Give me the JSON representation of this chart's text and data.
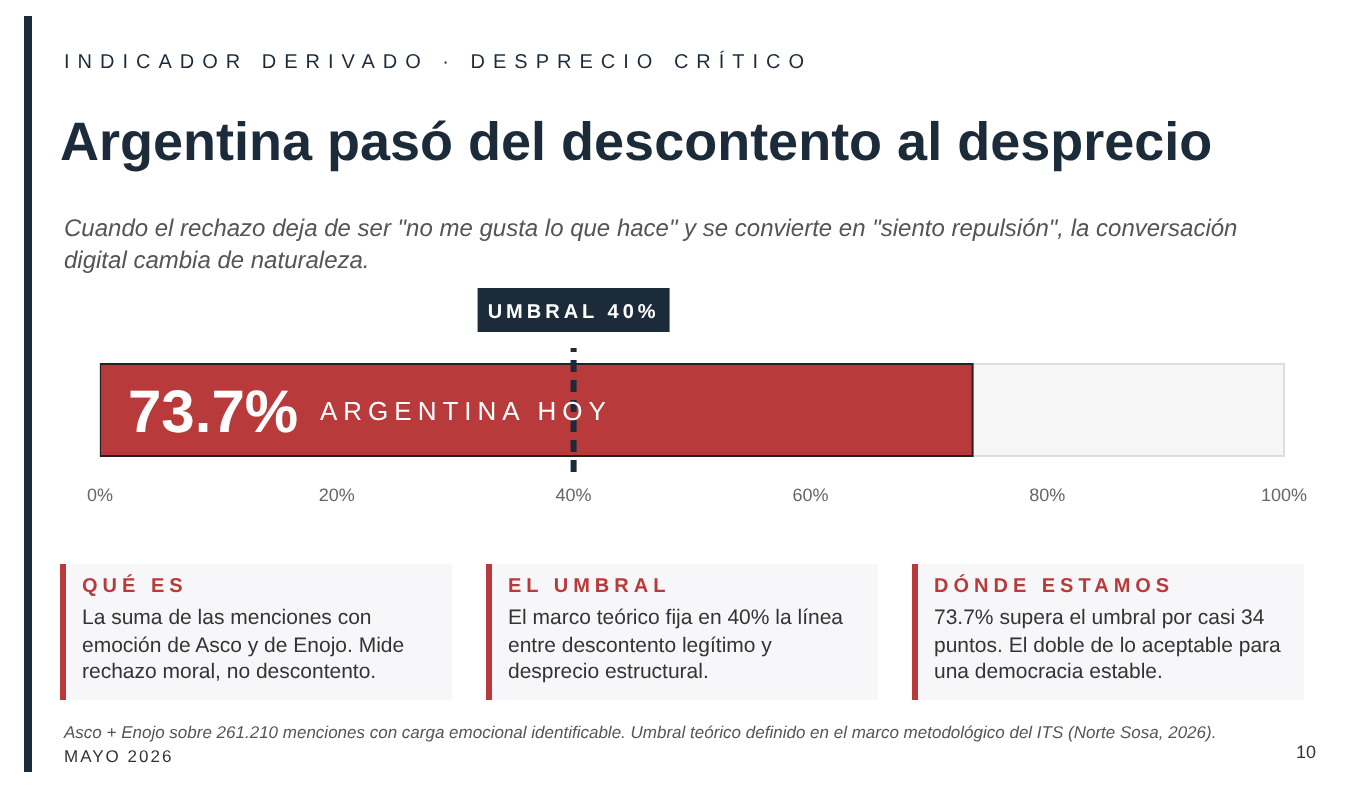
{
  "chart_data": {
    "type": "bar",
    "orientation": "horizontal",
    "title": "Argentina pasó del descontento al desprecio",
    "subtitle": "Cuando el rechazo deja de ser \"no me gusta lo que hace\" y se convierte en \"siento repulsión\", la conversación digital cambia de naturaleza.",
    "categories": [
      "ARGENTINA HOY"
    ],
    "values": [
      73.7
    ],
    "value_labels": [
      "73.7%"
    ],
    "color": "#b83a3a",
    "xlim": [
      0,
      100
    ],
    "xticks": [
      {
        "value": 0,
        "label": "0%"
      },
      {
        "value": 20,
        "label": "20%"
      },
      {
        "value": 40,
        "label": "40%"
      },
      {
        "value": 60,
        "label": "60%"
      },
      {
        "value": 80,
        "label": "80%"
      },
      {
        "value": 100,
        "label": "100%"
      }
    ],
    "ref_lines": [
      {
        "axis": "x",
        "value": 40,
        "label": "UMBRAL 40%",
        "color": "#1c2b3a",
        "line_style": "dashed"
      }
    ],
    "annotations": [
      "INDICADOR DERIVADO · DESPRECIO CRÍTICO",
      "QUÉ ES",
      "La suma de las menciones con emoción de Asco y de Enojo. Mide rechazo moral, no descontento.",
      "EL UMBRAL",
      "El marco teórico fija en 40% la línea entre descontento legítimo y desprecio estructural.",
      "DÓNDE ESTAMOS",
      "73.7% supera el umbral por casi 34 puntos. El doble de lo aceptable para una democracia estable.",
      "Asco + Enojo sobre 261.210 menciones con carga emocional identificable. Umbral teórico definido en el marco metodológico del ITS (Norte Sosa, 2026).",
      "MAYO 2026",
      "10"
    ]
  }
}
